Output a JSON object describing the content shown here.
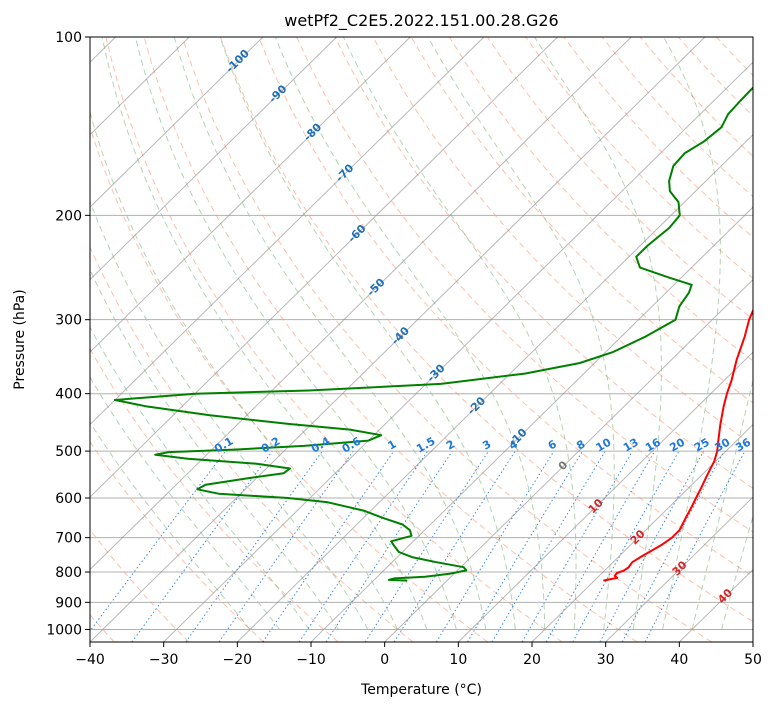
{
  "chart_data": {
    "type": "skew-t",
    "title": "wetPf2_C2E5.2022.151.00.28.G26",
    "xlabel": "Temperature (°C)",
    "ylabel": "Pressure (hPa)",
    "xlim": [
      -40,
      50
    ],
    "ylim": [
      1050,
      100
    ],
    "x_ticks": [
      -40,
      -30,
      -20,
      -10,
      0,
      10,
      20,
      30,
      40,
      50
    ],
    "y_ticks": [
      100,
      200,
      300,
      400,
      500,
      600,
      700,
      800,
      900,
      1000
    ],
    "grid": true,
    "series": [
      {
        "color": "#ff0000",
        "points": [
          [
            827,
            21.2
          ],
          [
            822,
            22.1
          ],
          [
            818,
            22.7
          ],
          [
            812,
            22.1
          ],
          [
            803,
            22.0
          ],
          [
            796,
            22.6
          ],
          [
            786,
            22.8
          ],
          [
            770,
            22.6
          ],
          [
            755,
            23.0
          ],
          [
            740,
            23.5
          ],
          [
            720,
            24.2
          ],
          [
            700,
            24.6
          ],
          [
            680,
            24.6
          ],
          [
            650,
            23.8
          ],
          [
            620,
            23.0
          ],
          [
            600,
            22.4
          ],
          [
            580,
            21.8
          ],
          [
            550,
            20.8
          ],
          [
            520,
            19.8
          ],
          [
            500,
            18.8
          ],
          [
            480,
            17.5
          ],
          [
            450,
            15.5
          ],
          [
            420,
            13.5
          ],
          [
            400,
            12.2
          ],
          [
            380,
            11.0
          ],
          [
            350,
            8.8
          ],
          [
            320,
            6.7
          ],
          [
            300,
            5.0
          ],
          [
            280,
            3.6
          ],
          [
            260,
            1.2
          ],
          [
            240,
            -1.5
          ],
          [
            220,
            -4.2
          ],
          [
            205,
            -6.0
          ],
          [
            195,
            -6.2
          ],
          [
            185,
            -6.7
          ],
          [
            175,
            -7.8
          ],
          [
            165,
            -9.6
          ],
          [
            155,
            -11.7
          ],
          [
            145,
            -12.8
          ],
          [
            137,
            -13.6
          ],
          [
            130,
            -13.9
          ],
          [
            125,
            -14.7
          ],
          [
            120,
            -15.5
          ],
          [
            113,
            -17.2
          ],
          [
            108,
            -18.0
          ],
          [
            104,
            -18.8
          ],
          [
            100,
            -19.5
          ]
        ]
      },
      {
        "color": "#008000",
        "points": [
          [
            827,
            -5.4
          ],
          [
            825,
            -8.0
          ],
          [
            820,
            -7.5
          ],
          [
            815,
            -3.5
          ],
          [
            805,
            -0.5
          ],
          [
            795,
            1.2
          ],
          [
            785,
            0.4
          ],
          [
            770,
            -4.0
          ],
          [
            755,
            -8.0
          ],
          [
            740,
            -10.5
          ],
          [
            720,
            -12.2
          ],
          [
            710,
            -13.0
          ],
          [
            695,
            -11.0
          ],
          [
            680,
            -12.0
          ],
          [
            665,
            -13.8
          ],
          [
            650,
            -17.0
          ],
          [
            630,
            -21.0
          ],
          [
            610,
            -27.0
          ],
          [
            600,
            -33.0
          ],
          [
            590,
            -43.0
          ],
          [
            580,
            -46.5
          ],
          [
            570,
            -46.0
          ],
          [
            555,
            -41.0
          ],
          [
            545,
            -37.0
          ],
          [
            535,
            -36.8
          ],
          [
            525,
            -42.0
          ],
          [
            515,
            -52.0
          ],
          [
            507,
            -57.0
          ],
          [
            502,
            -55.5
          ],
          [
            497,
            -47.0
          ],
          [
            490,
            -38.0
          ],
          [
            480,
            -30.0
          ],
          [
            470,
            -29.0
          ],
          [
            460,
            -34.0
          ],
          [
            450,
            -43.0
          ],
          [
            435,
            -55.0
          ],
          [
            420,
            -65.0
          ],
          [
            410,
            -70.0
          ],
          [
            400,
            -60.0
          ],
          [
            395,
            -45.0
          ],
          [
            385,
            -28.0
          ],
          [
            370,
            -18.0
          ],
          [
            355,
            -12.0
          ],
          [
            340,
            -9.0
          ],
          [
            320,
            -6.7
          ],
          [
            300,
            -5.0
          ],
          [
            285,
            -6.3
          ],
          [
            270,
            -6.9
          ],
          [
            262,
            -7.6
          ],
          [
            255,
            -11.5
          ],
          [
            245,
            -17.0
          ],
          [
            235,
            -19.0
          ],
          [
            225,
            -19.0
          ],
          [
            210,
            -18.5
          ],
          [
            200,
            -18.8
          ],
          [
            190,
            -20.8
          ],
          [
            182,
            -23.5
          ],
          [
            175,
            -25.0
          ],
          [
            165,
            -26.5
          ],
          [
            157,
            -26.7
          ],
          [
            150,
            -25.7
          ],
          [
            142,
            -25.3
          ],
          [
            135,
            -26.2
          ],
          [
            128,
            -26.4
          ],
          [
            120,
            -26.5
          ],
          [
            112,
            -26.0
          ],
          [
            106,
            -25.3
          ],
          [
            101,
            -24.7
          ],
          [
            100,
            -24.5
          ]
        ]
      }
    ],
    "isotherm_labels": [
      "-100",
      "-90",
      "-80",
      "-70",
      "-60",
      "-50",
      "-40",
      "-30",
      "-20",
      "-10",
      "0",
      "10",
      "20",
      "30",
      "40"
    ],
    "mixing_ratio_labels": [
      "0.1",
      "0.2",
      "0.4",
      "0.6",
      "1",
      "1.5",
      "2",
      "3",
      "4",
      "6",
      "8",
      "10",
      "13",
      "16",
      "20",
      "25",
      "30",
      "36"
    ],
    "colors": {
      "isotherm": "#888888",
      "dry_adiabat": "#ff8c64",
      "moist_adiabat": "#5aa05a",
      "mixing_ratio": "#1e78dc",
      "temperature": "#ff0000",
      "dewpoint": "#008000"
    }
  }
}
